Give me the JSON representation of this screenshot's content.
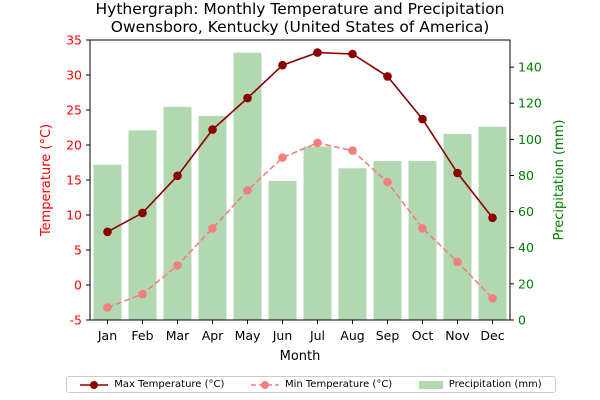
{
  "chart_data": {
    "type": "bar+line",
    "title_line1": "Hythergraph: Monthly Temperature and Precipitation",
    "title_line2": "Owensboro, Kentucky (United States of America)",
    "xlabel": "Month",
    "ylabel_left": "Temperature (°C)",
    "ylabel_right": "Precipitation (mm)",
    "categories": [
      "Jan",
      "Feb",
      "Mar",
      "Apr",
      "May",
      "Jun",
      "Jul",
      "Aug",
      "Sep",
      "Oct",
      "Nov",
      "Dec"
    ],
    "ylim_left": [
      -5,
      35
    ],
    "yticks_left": [
      -5,
      0,
      5,
      10,
      15,
      20,
      25,
      30,
      35
    ],
    "ylim_right": [
      0,
      155
    ],
    "yticks_right": [
      0,
      20,
      40,
      60,
      80,
      100,
      120,
      140
    ],
    "series": [
      {
        "name": "Max Temperature (°C)",
        "axis": "left",
        "kind": "line",
        "color": "#8b0000",
        "values": [
          7.6,
          10.3,
          15.6,
          22.2,
          26.7,
          31.4,
          33.2,
          33.0,
          29.8,
          23.7,
          16.0,
          9.6
        ]
      },
      {
        "name": "Min Temperature (°C)",
        "axis": "left",
        "kind": "line",
        "color": "#f08080",
        "values": [
          -3.2,
          -1.3,
          2.8,
          8.1,
          13.5,
          18.2,
          20.3,
          19.2,
          14.7,
          8.1,
          3.3,
          -1.9
        ]
      },
      {
        "name": "Precipitation (mm)",
        "axis": "right",
        "kind": "bar",
        "color": "#b2d8b2",
        "values": [
          86,
          105,
          118,
          113,
          148,
          77,
          96,
          84,
          88,
          88,
          103,
          107
        ]
      }
    ],
    "legend_position": "bottom",
    "colors": {
      "left_axis": "#ff0000",
      "right_axis": "#008000"
    }
  }
}
